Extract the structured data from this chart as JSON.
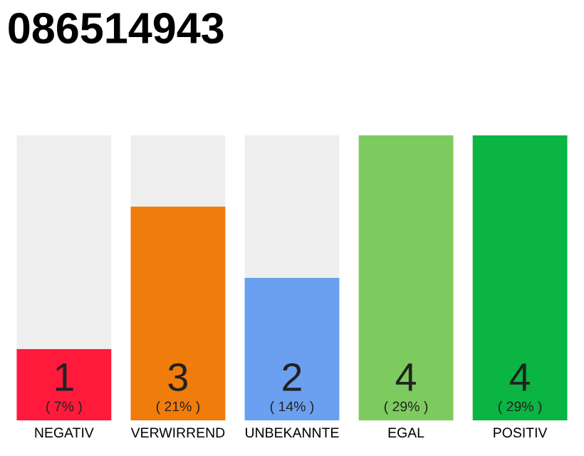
{
  "chart_data": {
    "type": "bar",
    "title": "086514943",
    "categories": [
      "NEGATIV",
      "VERWIRREND",
      "UNBEKANNTE",
      "EGAL",
      "POSITIV"
    ],
    "stacked": true,
    "ylim": [
      0,
      4
    ],
    "tick_labels": "x",
    "grid": false,
    "legend": false,
    "series": [
      {
        "colors": [
          "#ff1a3c",
          "#f07c0c",
          "#6aa0ef",
          "#7dcb5e",
          "#0ab543"
        ],
        "values": [
          1,
          3,
          2,
          4,
          4
        ],
        "value_labels": [
          "1\n( 7% )",
          "3\n( 21% )",
          "2\n( 14% )",
          "4\n( 29% )",
          "4\n( 29% )"
        ]
      },
      {
        "color": "#eeeeee",
        "values": [
          3,
          1,
          2,
          0,
          0
        ]
      }
    ]
  }
}
